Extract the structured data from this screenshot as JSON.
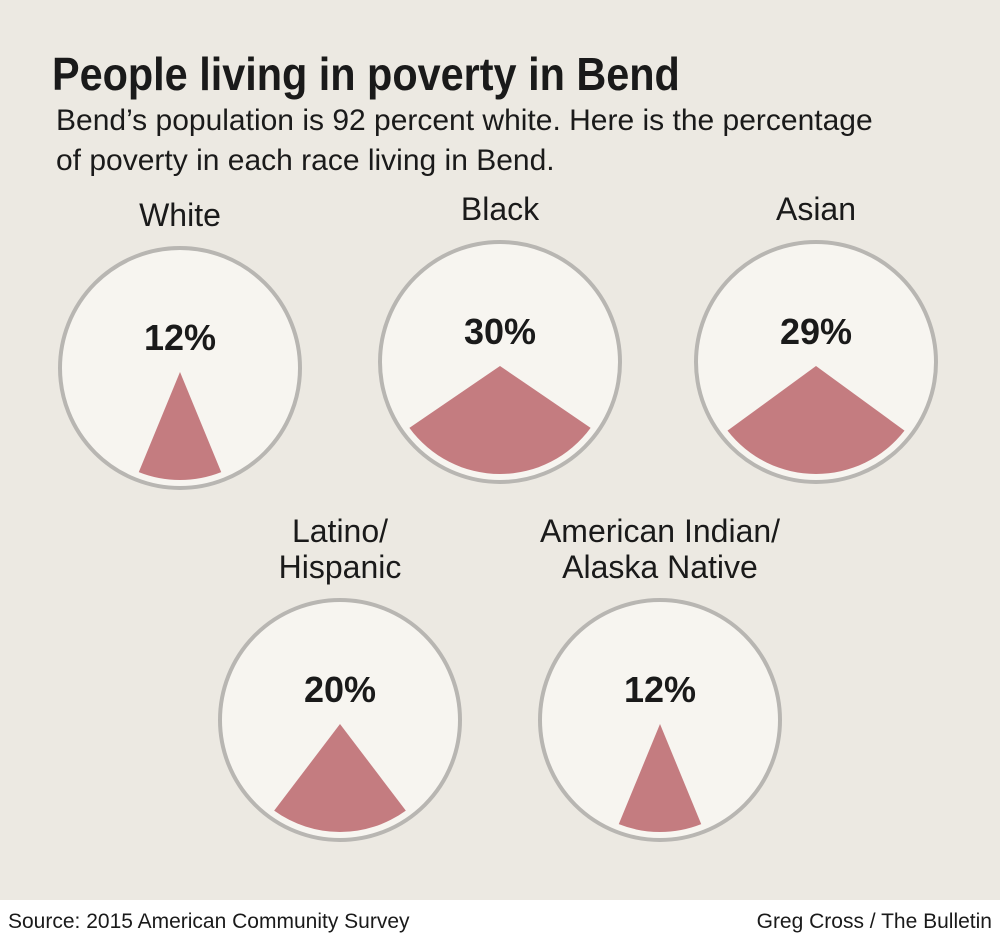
{
  "title": "People living in poverty in Bend",
  "subtitle": [
    "Bend’s population is 92 percent white. Here is the percentage",
    "of poverty in each race living in Bend."
  ],
  "source": "Source: 2015 American Community Survey",
  "credit": "Greg Cross / The Bulletin",
  "chart_data": [
    {
      "type": "pie",
      "title": [
        "White"
      ],
      "values": [
        12
      ],
      "value_labels": [
        "12%"
      ],
      "color": "#c47c80"
    },
    {
      "type": "pie",
      "title": [
        "Black"
      ],
      "values": [
        30
      ],
      "value_labels": [
        "30%"
      ],
      "color": "#c47c80"
    },
    {
      "type": "pie",
      "title": [
        "Asian"
      ],
      "values": [
        29
      ],
      "value_labels": [
        "29%"
      ],
      "color": "#c47c80"
    },
    {
      "type": "pie",
      "title": [
        "Latino/",
        "Hispanic"
      ],
      "values": [
        20
      ],
      "value_labels": [
        "20%"
      ],
      "color": "#c47c80"
    },
    {
      "type": "pie",
      "title": [
        "American Indian/",
        "Alaska Native"
      ],
      "values": [
        12
      ],
      "value_labels": [
        "12%"
      ],
      "color": "#c47c80"
    }
  ]
}
